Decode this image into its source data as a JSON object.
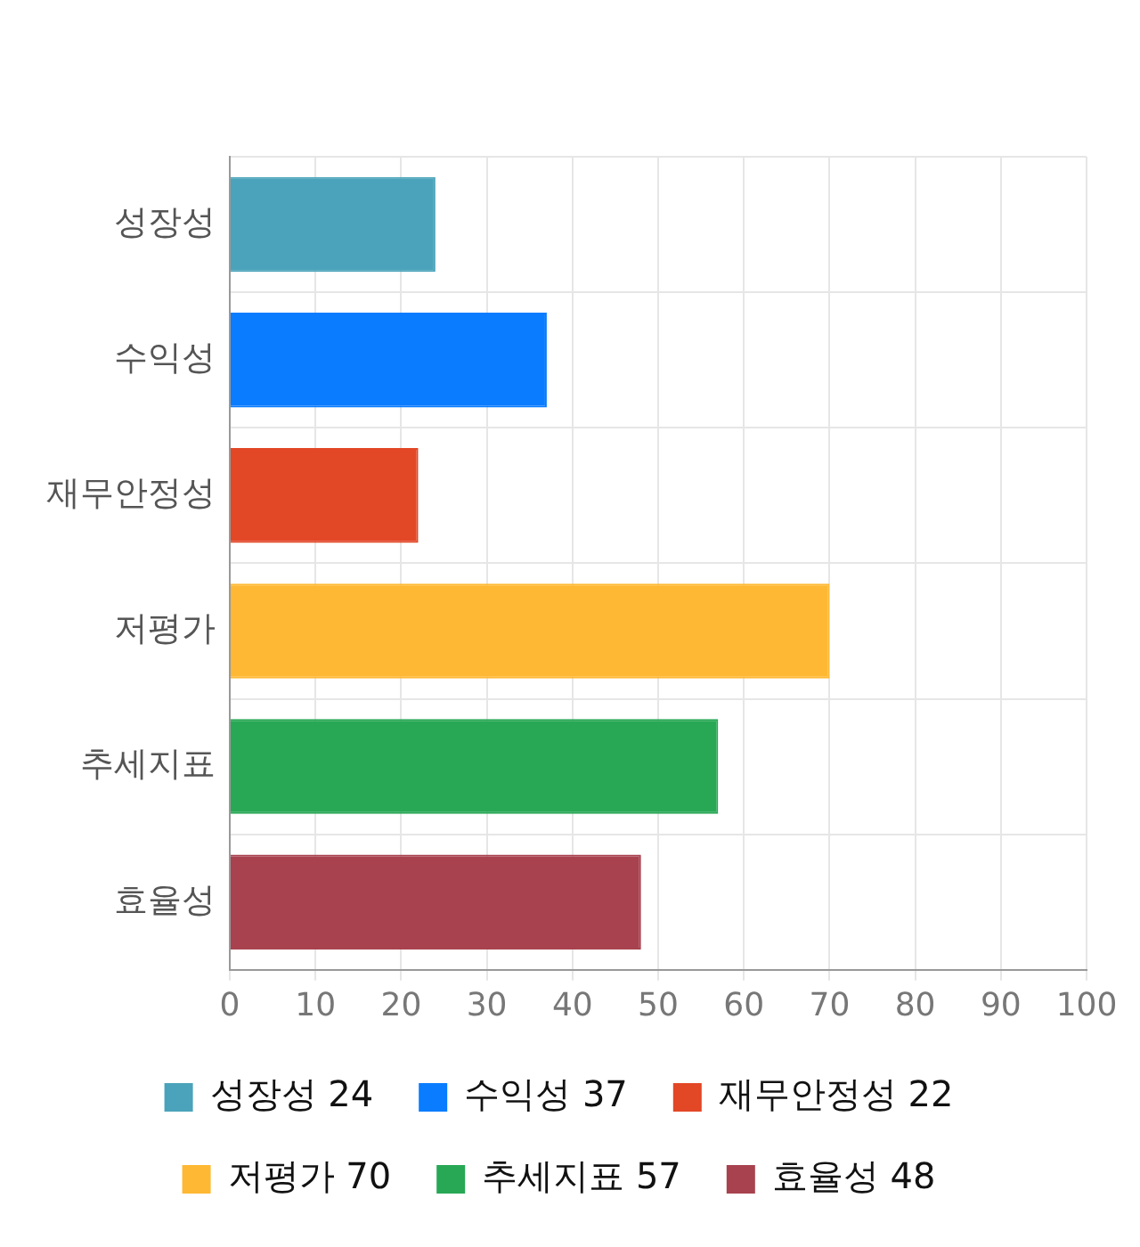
{
  "chart_data": {
    "type": "bar",
    "orientation": "horizontal",
    "categories": [
      "성장성",
      "수익성",
      "재무안정성",
      "저평가",
      "추세지표",
      "효율성"
    ],
    "series": [
      {
        "name": "성장성 24",
        "color": "#4aa3ba",
        "values": [
          24,
          null,
          null,
          null,
          null,
          null
        ]
      },
      {
        "name": "수익성 37",
        "color": "#0a7cff",
        "values": [
          null,
          37,
          null,
          null,
          null,
          null
        ]
      },
      {
        "name": "재무안정성 22",
        "color": "#e24726",
        "values": [
          null,
          null,
          22,
          null,
          null,
          null
        ]
      },
      {
        "name": "저평가 70",
        "color": "#ffb833",
        "values": [
          null,
          null,
          null,
          70,
          null,
          null
        ]
      },
      {
        "name": "추세지표 57",
        "color": "#28a855",
        "values": [
          null,
          null,
          null,
          null,
          57,
          null
        ]
      },
      {
        "name": "효율성 48",
        "color": "#a8424f",
        "values": [
          null,
          null,
          null,
          null,
          null,
          48
        ]
      }
    ],
    "xlim": [
      0,
      100
    ],
    "xticks": [
      0,
      10,
      20,
      30,
      40,
      50,
      60,
      70,
      80,
      90,
      100
    ],
    "grid": true,
    "legend": "bottom"
  }
}
